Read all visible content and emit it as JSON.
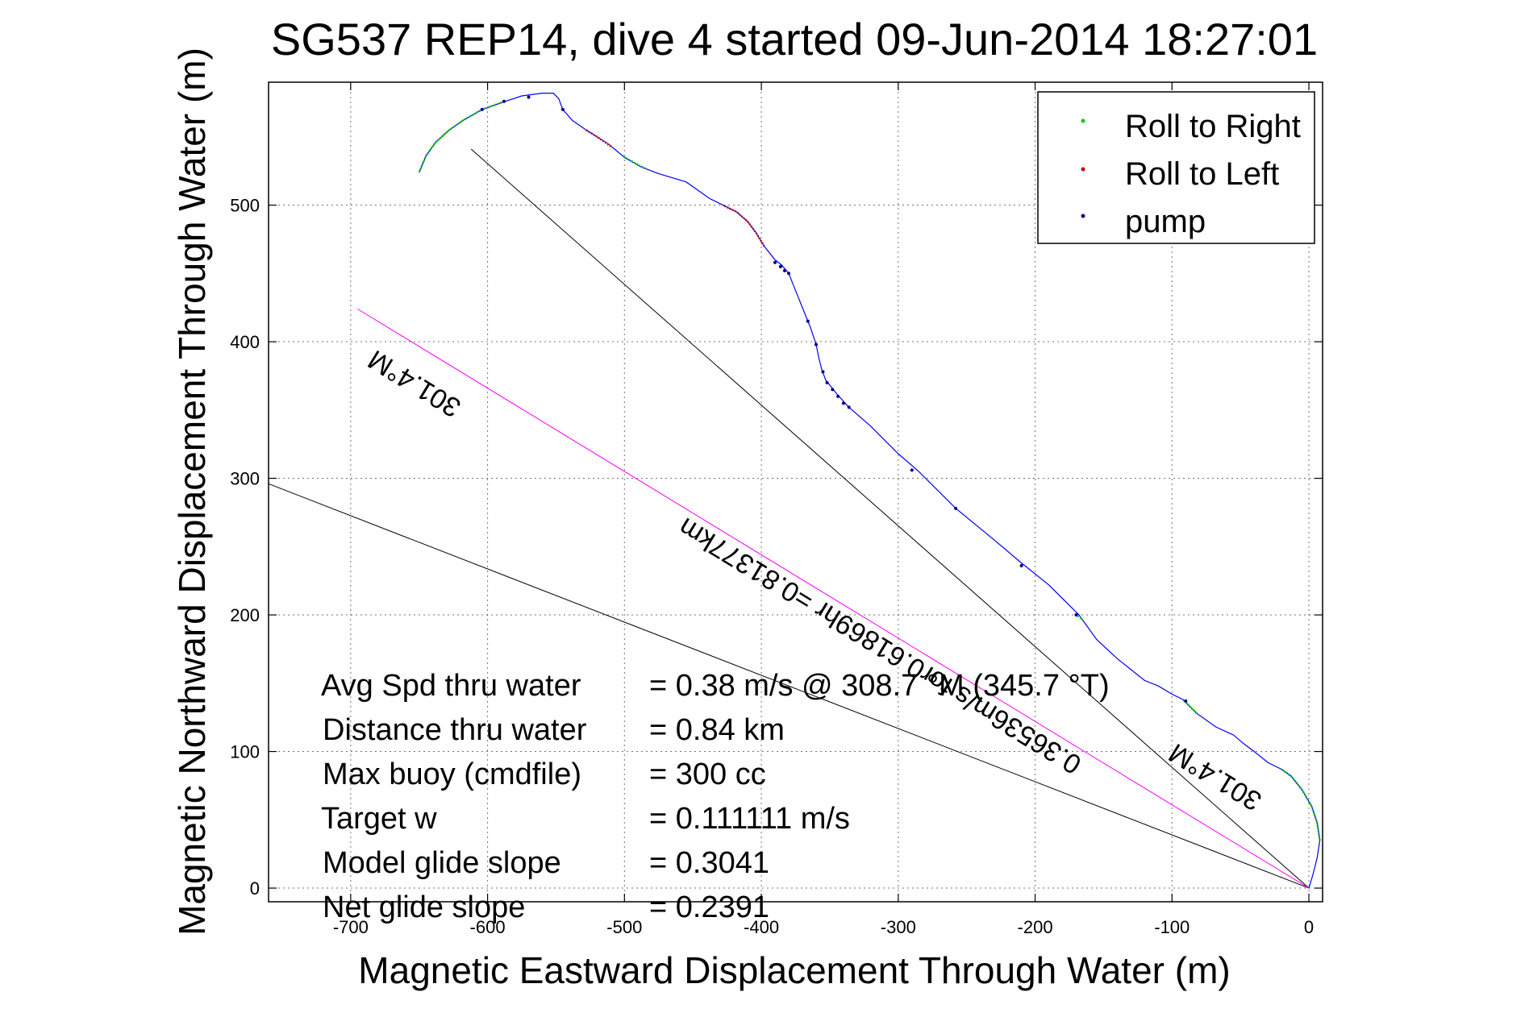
{
  "chart_data": {
    "type": "line",
    "title": "SG537 REP14, dive 4 started 09-Jun-2014 18:27:01",
    "xlabel": "Magnetic Eastward Displacement Through Water (m)",
    "ylabel": "Magnetic Northward Displacement Through Water (m)",
    "xlim": [
      -760,
      10
    ],
    "ylim": [
      -10,
      590
    ],
    "xticks": [
      -700,
      -600,
      -500,
      -400,
      -300,
      -200,
      -100,
      0
    ],
    "xtick_labels": [
      "-700",
      "-600",
      "-500",
      "-400",
      "-300",
      "-200",
      "-100",
      "0"
    ],
    "yticks": [
      0,
      100,
      200,
      300,
      400,
      500
    ],
    "ytick_labels": [
      "0",
      "100",
      "200",
      "300",
      "400",
      "500"
    ],
    "grid": true,
    "legend": {
      "placement": "top-right",
      "entries": [
        {
          "label": "Roll to Right",
          "color": "#00cc00"
        },
        {
          "label": "Roll to Left",
          "color": "#cc0000"
        },
        {
          "label": "pump",
          "color": "#000080"
        }
      ]
    },
    "track": {
      "color": "#0000ff",
      "points": [
        [
          0,
          0
        ],
        [
          3,
          10
        ],
        [
          6,
          22
        ],
        [
          8,
          35
        ],
        [
          6,
          48
        ],
        [
          2,
          60
        ],
        [
          -5,
          72
        ],
        [
          -13,
          82
        ],
        [
          -20,
          87
        ],
        [
          -30,
          92
        ],
        [
          -40,
          100
        ],
        [
          -48,
          106
        ],
        [
          -55,
          112
        ],
        [
          -68,
          118
        ],
        [
          -82,
          128
        ],
        [
          -92,
          138
        ],
        [
          -100,
          142
        ],
        [
          -110,
          148
        ],
        [
          -120,
          152
        ],
        [
          -130,
          160
        ],
        [
          -140,
          168
        ],
        [
          -155,
          182
        ],
        [
          -168,
          200
        ],
        [
          -178,
          210
        ],
        [
          -190,
          222
        ],
        [
          -210,
          238
        ],
        [
          -230,
          255
        ],
        [
          -258,
          278
        ],
        [
          -285,
          305
        ],
        [
          -300,
          318
        ],
        [
          -320,
          338
        ],
        [
          -336,
          352
        ],
        [
          -345,
          362
        ],
        [
          -353,
          372
        ],
        [
          -356,
          380
        ],
        [
          -358,
          388
        ],
        [
          -360,
          398
        ],
        [
          -364,
          410
        ],
        [
          -368,
          420
        ],
        [
          -372,
          430
        ],
        [
          -376,
          440
        ],
        [
          -380,
          450
        ],
        [
          -385,
          456
        ],
        [
          -390,
          460
        ],
        [
          -398,
          470
        ],
        [
          -404,
          480
        ],
        [
          -410,
          488
        ],
        [
          -418,
          495
        ],
        [
          -428,
          500
        ],
        [
          -438,
          505
        ],
        [
          -445,
          510
        ],
        [
          -455,
          517
        ],
        [
          -465,
          520
        ],
        [
          -475,
          523
        ],
        [
          -488,
          528
        ],
        [
          -500,
          535
        ],
        [
          -512,
          545
        ],
        [
          -520,
          550
        ],
        [
          -528,
          555
        ],
        [
          -538,
          562
        ],
        [
          -545,
          570
        ],
        [
          -548,
          578
        ],
        [
          -552,
          582
        ],
        [
          -560,
          582
        ],
        [
          -575,
          580
        ],
        [
          -590,
          575
        ],
        [
          -604,
          570
        ],
        [
          -618,
          562
        ],
        [
          -628,
          555
        ],
        [
          -638,
          546
        ],
        [
          -645,
          536
        ],
        [
          -650,
          524
        ]
      ]
    },
    "roll_right_segments": [
      [
        [
          8,
          35
        ],
        [
          6,
          48
        ],
        [
          2,
          60
        ],
        [
          -5,
          72
        ],
        [
          -13,
          82
        ],
        [
          -20,
          87
        ]
      ],
      [
        [
          -82,
          128
        ],
        [
          -92,
          138
        ]
      ],
      [
        [
          -165,
          196
        ],
        [
          -170,
          200
        ]
      ],
      [
        [
          -485,
          527
        ],
        [
          -500,
          535
        ]
      ],
      [
        [
          -590,
          575
        ],
        [
          -604,
          570
        ],
        [
          -618,
          562
        ],
        [
          -628,
          555
        ],
        [
          -638,
          546
        ],
        [
          -645,
          536
        ],
        [
          -650,
          524
        ]
      ]
    ],
    "roll_left_segments": [
      [
        [
          -398,
          470
        ],
        [
          -404,
          480
        ],
        [
          -410,
          488
        ],
        [
          -418,
          495
        ],
        [
          -428,
          500
        ]
      ],
      [
        [
          -510,
          543
        ],
        [
          -520,
          550
        ],
        [
          -528,
          555
        ]
      ]
    ],
    "pump_points": [
      [
        -90,
        137
      ],
      [
        -170,
        200
      ],
      [
        -210,
        236
      ],
      [
        -258,
        278
      ],
      [
        -290,
        306
      ],
      [
        -336,
        352
      ],
      [
        -340,
        355
      ],
      [
        -344,
        360
      ],
      [
        -348,
        365
      ],
      [
        -352,
        370
      ],
      [
        -355,
        378
      ],
      [
        -360,
        398
      ],
      [
        -366,
        415
      ],
      [
        -380,
        450
      ],
      [
        -383,
        452
      ],
      [
        -386,
        455
      ],
      [
        -390,
        458
      ],
      [
        -545,
        570
      ],
      [
        -570,
        579
      ],
      [
        -588,
        576
      ],
      [
        -604,
        570
      ]
    ],
    "reference_lines": [
      {
        "color": "#000000",
        "from": [
          0,
          0
        ],
        "to": [
          -612,
          541
        ]
      },
      {
        "color": "#000000",
        "from": [
          0,
          0
        ],
        "to": [
          -760,
          296
        ]
      },
      {
        "color": "#ff00ff",
        "from": [
          0,
          0
        ],
        "to": [
          -695,
          424
        ]
      }
    ],
    "line_annotations": [
      {
        "text": "301.4°M",
        "x": -650,
        "y": 375,
        "angle_deg": 31.4
      },
      {
        "text": "0.36536m/s for0.61869hr =0.81377km",
        "x": -310,
        "y": 183,
        "angle_deg": 31.4
      },
      {
        "text": "301.4°M",
        "x": -65,
        "y": 87,
        "angle_deg": 31.4
      }
    ],
    "stats": [
      {
        "label": "Avg Spd thru water",
        "value": "=  0.38 m/s @ 308.7 °M (345.7 °T)"
      },
      {
        "label": "Distance thru water",
        "value": "=  0.84 km"
      },
      {
        "label": "Max buoy (cmdfile)",
        "value": "= 300 cc"
      },
      {
        "label": "Target w",
        "value": "= 0.111111 m/s"
      },
      {
        "label": "Model glide slope",
        "value": "= 0.3041"
      },
      {
        "label": "Net glide slope",
        "value": "= 0.2391"
      }
    ]
  }
}
